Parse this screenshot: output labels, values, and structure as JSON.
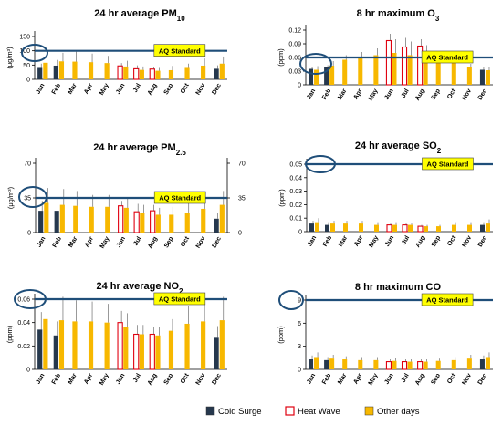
{
  "legend": {
    "items": [
      {
        "label": "Cold Surge",
        "color": "#26384d",
        "style": "cold"
      },
      {
        "label": "Heat Wave",
        "color": "#e0000f",
        "style": "heat"
      },
      {
        "label": "Other days",
        "color": "#f7b800",
        "style": "other"
      }
    ]
  },
  "colors": {
    "cold_fill": "#26384d",
    "heat_stroke": "#e0000f",
    "other_fill": "#f7b800",
    "standard_line": "#1f4e79",
    "standard_box": "#ffff00",
    "circle": "#1f4e79"
  },
  "standard_label": "AQ Standard",
  "chart_data": [
    {
      "id": "pm10",
      "type": "bar",
      "title": "24 hr average PM",
      "title_sub": "10",
      "ylabel": "(μg/m³)",
      "ylim": [
        0,
        150
      ],
      "yticks": [
        "0",
        "50",
        "100",
        "150"
      ],
      "standard_value": 100,
      "standard_label": "AQ Standard",
      "categories": [
        "Jan",
        "Feb",
        "Mar",
        "Apr",
        "May",
        "Jun",
        "Jul",
        "Aug",
        "Sep",
        "Oct",
        "Nov",
        "Dec"
      ],
      "series": [
        {
          "name": "Cold Surge",
          "values": [
            40,
            48,
            null,
            null,
            null,
            null,
            null,
            null,
            null,
            null,
            null,
            37
          ],
          "errors": [
            15,
            20,
            null,
            null,
            null,
            null,
            null,
            null,
            null,
            null,
            null,
            12
          ]
        },
        {
          "name": "Heat Wave",
          "values": [
            null,
            null,
            null,
            null,
            null,
            47,
            37,
            36,
            null,
            null,
            null,
            null
          ],
          "errors": [
            null,
            null,
            null,
            null,
            null,
            10,
            12,
            8,
            null,
            null,
            null,
            null
          ]
        },
        {
          "name": "Other days",
          "values": [
            58,
            63,
            62,
            60,
            57,
            45,
            33,
            30,
            32,
            40,
            48,
            55
          ],
          "errors": [
            25,
            30,
            35,
            30,
            25,
            20,
            12,
            10,
            15,
            15,
            25,
            25
          ]
        }
      ]
    },
    {
      "id": "o3",
      "type": "bar",
      "title": "8 hr maximum O",
      "title_sub": "3",
      "ylabel": "(ppm)",
      "ylim": [
        0,
        0.12
      ],
      "yticks": [
        "0",
        "0.03",
        "0.06",
        "0.09",
        "0.12"
      ],
      "standard_value": 0.06,
      "standard_label": "AQ Standard",
      "categories": [
        "Jan",
        "Feb",
        "Mar",
        "Apr",
        "May",
        "Jun",
        "Jul",
        "Aug",
        "Sep",
        "Oct",
        "Nov",
        "Dec"
      ],
      "series": [
        {
          "name": "Cold Surge",
          "values": [
            0.035,
            0.038,
            null,
            null,
            null,
            null,
            null,
            null,
            null,
            null,
            null,
            0.033
          ],
          "errors": [
            0.005,
            0.005,
            null,
            null,
            null,
            null,
            null,
            null,
            null,
            null,
            null,
            0.005
          ]
        },
        {
          "name": "Heat Wave",
          "values": [
            null,
            null,
            null,
            null,
            null,
            0.097,
            0.083,
            0.085,
            null,
            null,
            null,
            null
          ],
          "errors": [
            null,
            null,
            null,
            null,
            null,
            0.015,
            0.02,
            0.015,
            null,
            null,
            null,
            null
          ]
        },
        {
          "name": "Other days",
          "values": [
            0.033,
            0.042,
            0.055,
            0.06,
            0.065,
            0.07,
            0.065,
            0.062,
            0.058,
            0.048,
            0.038,
            0.032
          ],
          "errors": [
            0.008,
            0.01,
            0.01,
            0.012,
            0.015,
            0.03,
            0.03,
            0.025,
            0.015,
            0.01,
            0.008,
            0.006
          ]
        }
      ]
    },
    {
      "id": "pm25",
      "type": "bar",
      "title": "24 hr average PM",
      "title_sub": "2.5",
      "ylabel": "(μg/m³)",
      "ylim": [
        0,
        70
      ],
      "yticks": [
        "0",
        "35",
        "70"
      ],
      "right_ticks": [
        "0",
        "35",
        "70"
      ],
      "standard_value": 35,
      "standard_label": "AQ Standard",
      "categories": [
        "Jan",
        "Feb",
        "Mar",
        "Apr",
        "May",
        "Jun",
        "Jul",
        "Aug",
        "Sep",
        "Oct",
        "Nov",
        "Dec"
      ],
      "series": [
        {
          "name": "Cold Surge",
          "values": [
            22,
            22,
            null,
            null,
            null,
            null,
            null,
            null,
            null,
            null,
            null,
            14
          ],
          "errors": [
            10,
            10,
            null,
            null,
            null,
            null,
            null,
            null,
            null,
            null,
            null,
            6
          ]
        },
        {
          "name": "Heat Wave",
          "values": [
            null,
            null,
            null,
            null,
            null,
            27,
            21,
            22,
            null,
            null,
            null,
            null
          ],
          "errors": [
            null,
            null,
            null,
            null,
            null,
            5,
            8,
            6,
            null,
            null,
            null,
            null
          ]
        },
        {
          "name": "Other days",
          "values": [
            30,
            28,
            27,
            26,
            26,
            25,
            20,
            18,
            18,
            20,
            24,
            28
          ],
          "errors": [
            15,
            16,
            15,
            12,
            12,
            10,
            8,
            7,
            8,
            10,
            12,
            14
          ]
        }
      ]
    },
    {
      "id": "so2",
      "type": "bar",
      "title": "24 hr average SO",
      "title_sub": "2",
      "ylabel": "(ppm)",
      "ylim": [
        0,
        0.05
      ],
      "yticks": [
        "0",
        "0.01",
        "0.02",
        "0.03",
        "0.04",
        "0.05"
      ],
      "standard_value": 0.05,
      "standard_label": "AQ Standard",
      "categories": [
        "Jan",
        "Feb",
        "Mar",
        "Apr",
        "May",
        "Jun",
        "Jul",
        "Aug",
        "Sep",
        "Oct",
        "Nov",
        "Dec"
      ],
      "series": [
        {
          "name": "Cold Surge",
          "values": [
            0.006,
            0.005,
            null,
            null,
            null,
            null,
            null,
            null,
            null,
            null,
            null,
            0.005
          ],
          "errors": [
            0.002,
            0.002,
            null,
            null,
            null,
            null,
            null,
            null,
            null,
            null,
            null,
            0.002
          ]
        },
        {
          "name": "Heat Wave",
          "values": [
            null,
            null,
            null,
            null,
            null,
            0.005,
            0.005,
            0.004,
            null,
            null,
            null,
            null
          ],
          "errors": [
            null,
            null,
            null,
            null,
            null,
            0.001,
            0.001,
            0.001,
            null,
            null,
            null,
            null
          ]
        },
        {
          "name": "Other days",
          "values": [
            0.007,
            0.006,
            0.006,
            0.006,
            0.005,
            0.005,
            0.005,
            0.004,
            0.004,
            0.005,
            0.005,
            0.006
          ],
          "errors": [
            0.003,
            0.002,
            0.002,
            0.002,
            0.002,
            0.002,
            0.001,
            0.001,
            0.001,
            0.002,
            0.002,
            0.003
          ]
        }
      ]
    },
    {
      "id": "no2",
      "type": "bar",
      "title": "24 hr average NO",
      "title_sub": "2",
      "ylabel": "(ppm)",
      "ylim": [
        0,
        0.06
      ],
      "yticks": [
        "0",
        "0.02",
        "0.04",
        "0.06"
      ],
      "standard_value": 0.06,
      "standard_label": "AQ Standard",
      "categories": [
        "Jan",
        "Feb",
        "Mar",
        "Apr",
        "May",
        "Jun",
        "Jul",
        "Aug",
        "Sep",
        "Oct",
        "Nov",
        "Dec"
      ],
      "series": [
        {
          "name": "Cold Surge",
          "values": [
            0.034,
            0.029,
            null,
            null,
            null,
            null,
            null,
            null,
            null,
            null,
            null,
            0.027
          ],
          "errors": [
            0.015,
            0.012,
            null,
            null,
            null,
            null,
            null,
            null,
            null,
            null,
            null,
            0.01
          ]
        },
        {
          "name": "Heat Wave",
          "values": [
            null,
            null,
            null,
            null,
            null,
            0.04,
            0.03,
            0.03,
            null,
            null,
            null,
            null
          ],
          "errors": [
            null,
            null,
            null,
            null,
            null,
            0.01,
            0.008,
            0.006,
            null,
            null,
            null,
            null
          ]
        },
        {
          "name": "Other days",
          "values": [
            0.043,
            0.042,
            0.041,
            0.041,
            0.04,
            0.036,
            0.03,
            0.029,
            0.033,
            0.039,
            0.041,
            0.042
          ],
          "errors": [
            0.018,
            0.02,
            0.018,
            0.017,
            0.016,
            0.012,
            0.008,
            0.007,
            0.01,
            0.015,
            0.018,
            0.02
          ]
        }
      ]
    },
    {
      "id": "co",
      "type": "bar",
      "title": "8 hr maximum CO",
      "title_sub": "",
      "ylabel": "(ppm)",
      "ylim": [
        0,
        9
      ],
      "yticks": [
        "0",
        "3",
        "6",
        "9"
      ],
      "standard_value": 9,
      "standard_label": "AQ Standard",
      "categories": [
        "Jan",
        "Feb",
        "Mar",
        "Apr",
        "May",
        "Jun",
        "Jul",
        "Aug",
        "Sep",
        "Oct",
        "Nov",
        "Dec"
      ],
      "series": [
        {
          "name": "Cold Surge",
          "values": [
            1.3,
            1.2,
            null,
            null,
            null,
            null,
            null,
            null,
            null,
            null,
            null,
            1.3
          ],
          "errors": [
            0.5,
            0.4,
            null,
            null,
            null,
            null,
            null,
            null,
            null,
            null,
            null,
            0.5
          ]
        },
        {
          "name": "Heat Wave",
          "values": [
            null,
            null,
            null,
            null,
            null,
            1.0,
            1.0,
            1.0,
            null,
            null,
            null,
            null
          ],
          "errors": [
            null,
            null,
            null,
            null,
            null,
            0.3,
            0.3,
            0.3,
            null,
            null,
            null,
            null
          ]
        },
        {
          "name": "Other days",
          "values": [
            1.6,
            1.4,
            1.3,
            1.2,
            1.2,
            1.1,
            1.0,
            1.0,
            1.1,
            1.2,
            1.4,
            1.6
          ],
          "errors": [
            0.6,
            0.5,
            0.4,
            0.4,
            0.4,
            0.4,
            0.3,
            0.3,
            0.3,
            0.4,
            0.5,
            0.6
          ]
        }
      ]
    }
  ]
}
